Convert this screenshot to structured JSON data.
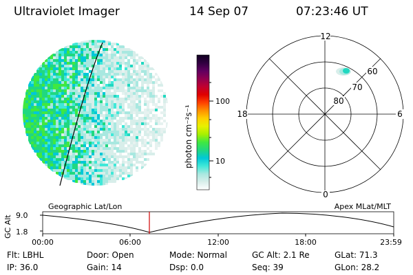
{
  "header": {
    "instrument": "Ultraviolet Imager",
    "date": "14 Sep 07",
    "time": "07:23:46 UT"
  },
  "colorbar": {
    "label": "photon cm⁻²s⁻¹",
    "ticks": [
      "100",
      "10"
    ],
    "colors": [
      "#ffffff",
      "#d8eeea",
      "#a8e8e0",
      "#40e8d8",
      "#00c8d8",
      "#20d880",
      "#40e840",
      "#a8f000",
      "#e8f000",
      "#ffd000",
      "#ff9000",
      "#ff4000",
      "#e00000",
      "#c00030",
      "#900050",
      "#600060",
      "#300040",
      "#100020"
    ]
  },
  "polar": {
    "mlt_labels": [
      "12",
      "18",
      "6",
      "0"
    ],
    "lat_labels": [
      "60",
      "70",
      "80"
    ]
  },
  "timeline": {
    "ylabel": "GC Alt",
    "y_ticks": [
      "9.0",
      "1.8"
    ],
    "left_label": "Geographic Lat/Lon",
    "right_label": "Apex MLat/MLT",
    "x_ticks": [
      "00:00",
      "06:00",
      "12:00",
      "18:00",
      "23:59"
    ],
    "current_marker_color": "#d00000"
  },
  "info": {
    "flt": "Flt: LBHL",
    "ip": "IP: 36.0",
    "door": "Door: Open",
    "gain": "Gain: 14",
    "mode": "Mode: Normal",
    "dsp": "Dsp:     0.0",
    "gc_alt": "GC Alt: 2.1 Re",
    "seq": "Seq: 39",
    "glat": "GLat:  71.3",
    "glon": "GLon:  28.2"
  }
}
